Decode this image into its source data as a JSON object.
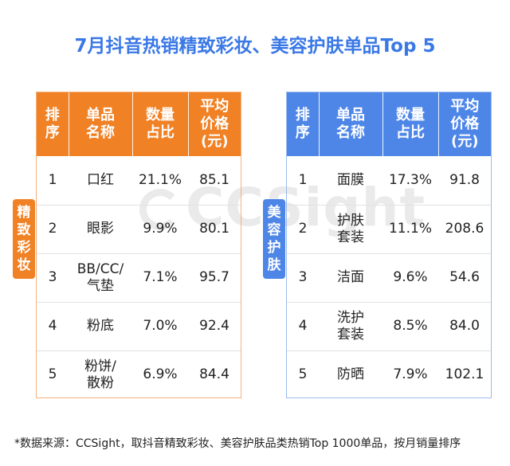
{
  "title": "7月抖音热销精致彩妆、美容护肤单品Top  5",
  "watermark": "CCSight",
  "headers": [
    "排序",
    "单品名称",
    "数量占比",
    "平均价格(元)"
  ],
  "headers_lines": [
    [
      "排",
      "序"
    ],
    [
      "单品",
      "名称"
    ],
    [
      "数量",
      "占比"
    ],
    [
      "平均",
      "价格",
      "(元)"
    ]
  ],
  "left": {
    "category": "精致彩妆",
    "category_chars": [
      "精",
      "致",
      "彩",
      "妆"
    ],
    "rows": [
      {
        "rank": "1",
        "name_lines": [
          "口红"
        ],
        "share": "21.1%",
        "price": "85.1",
        "highlight": true
      },
      {
        "rank": "2",
        "name_lines": [
          "眼影"
        ],
        "share": "9.9%",
        "price": "80.1",
        "highlight": false
      },
      {
        "rank": "3",
        "name_lines": [
          "BB/CC/",
          "气垫"
        ],
        "share": "7.1%",
        "price": "95.7",
        "highlight": false
      },
      {
        "rank": "4",
        "name_lines": [
          "粉底"
        ],
        "share": "7.0%",
        "price": "92.4",
        "highlight": false
      },
      {
        "rank": "5",
        "name_lines": [
          "粉饼/",
          "散粉"
        ],
        "share": "6.9%",
        "price": "84.4",
        "highlight": false
      }
    ]
  },
  "right": {
    "category": "美容护肤",
    "category_chars": [
      "美",
      "容",
      "护",
      "肤"
    ],
    "rows": [
      {
        "rank": "1",
        "name_lines": [
          "面膜"
        ],
        "share": "17.3%",
        "price": "91.8",
        "highlight": true
      },
      {
        "rank": "2",
        "name_lines": [
          "护肤",
          "套装"
        ],
        "share": "11.1%",
        "price": "208.6",
        "highlight": false
      },
      {
        "rank": "3",
        "name_lines": [
          "洁面"
        ],
        "share": "9.6%",
        "price": "54.6",
        "highlight": false
      },
      {
        "rank": "4",
        "name_lines": [
          "洗护",
          "套装"
        ],
        "share": "8.5%",
        "price": "84.0",
        "highlight": false
      },
      {
        "rank": "5",
        "name_lines": [
          "防晒"
        ],
        "share": "7.9%",
        "price": "102.1",
        "highlight": false
      }
    ]
  },
  "footnote": "*数据来源：CCSight，取抖音精致彩妆、美容护肤品类热销Top 1000单品，按月销量排序",
  "colors": {
    "title": "#3a78e6",
    "left_accent": "#f08124",
    "right_accent": "#4e86e8",
    "highlight": "#d9252b"
  }
}
